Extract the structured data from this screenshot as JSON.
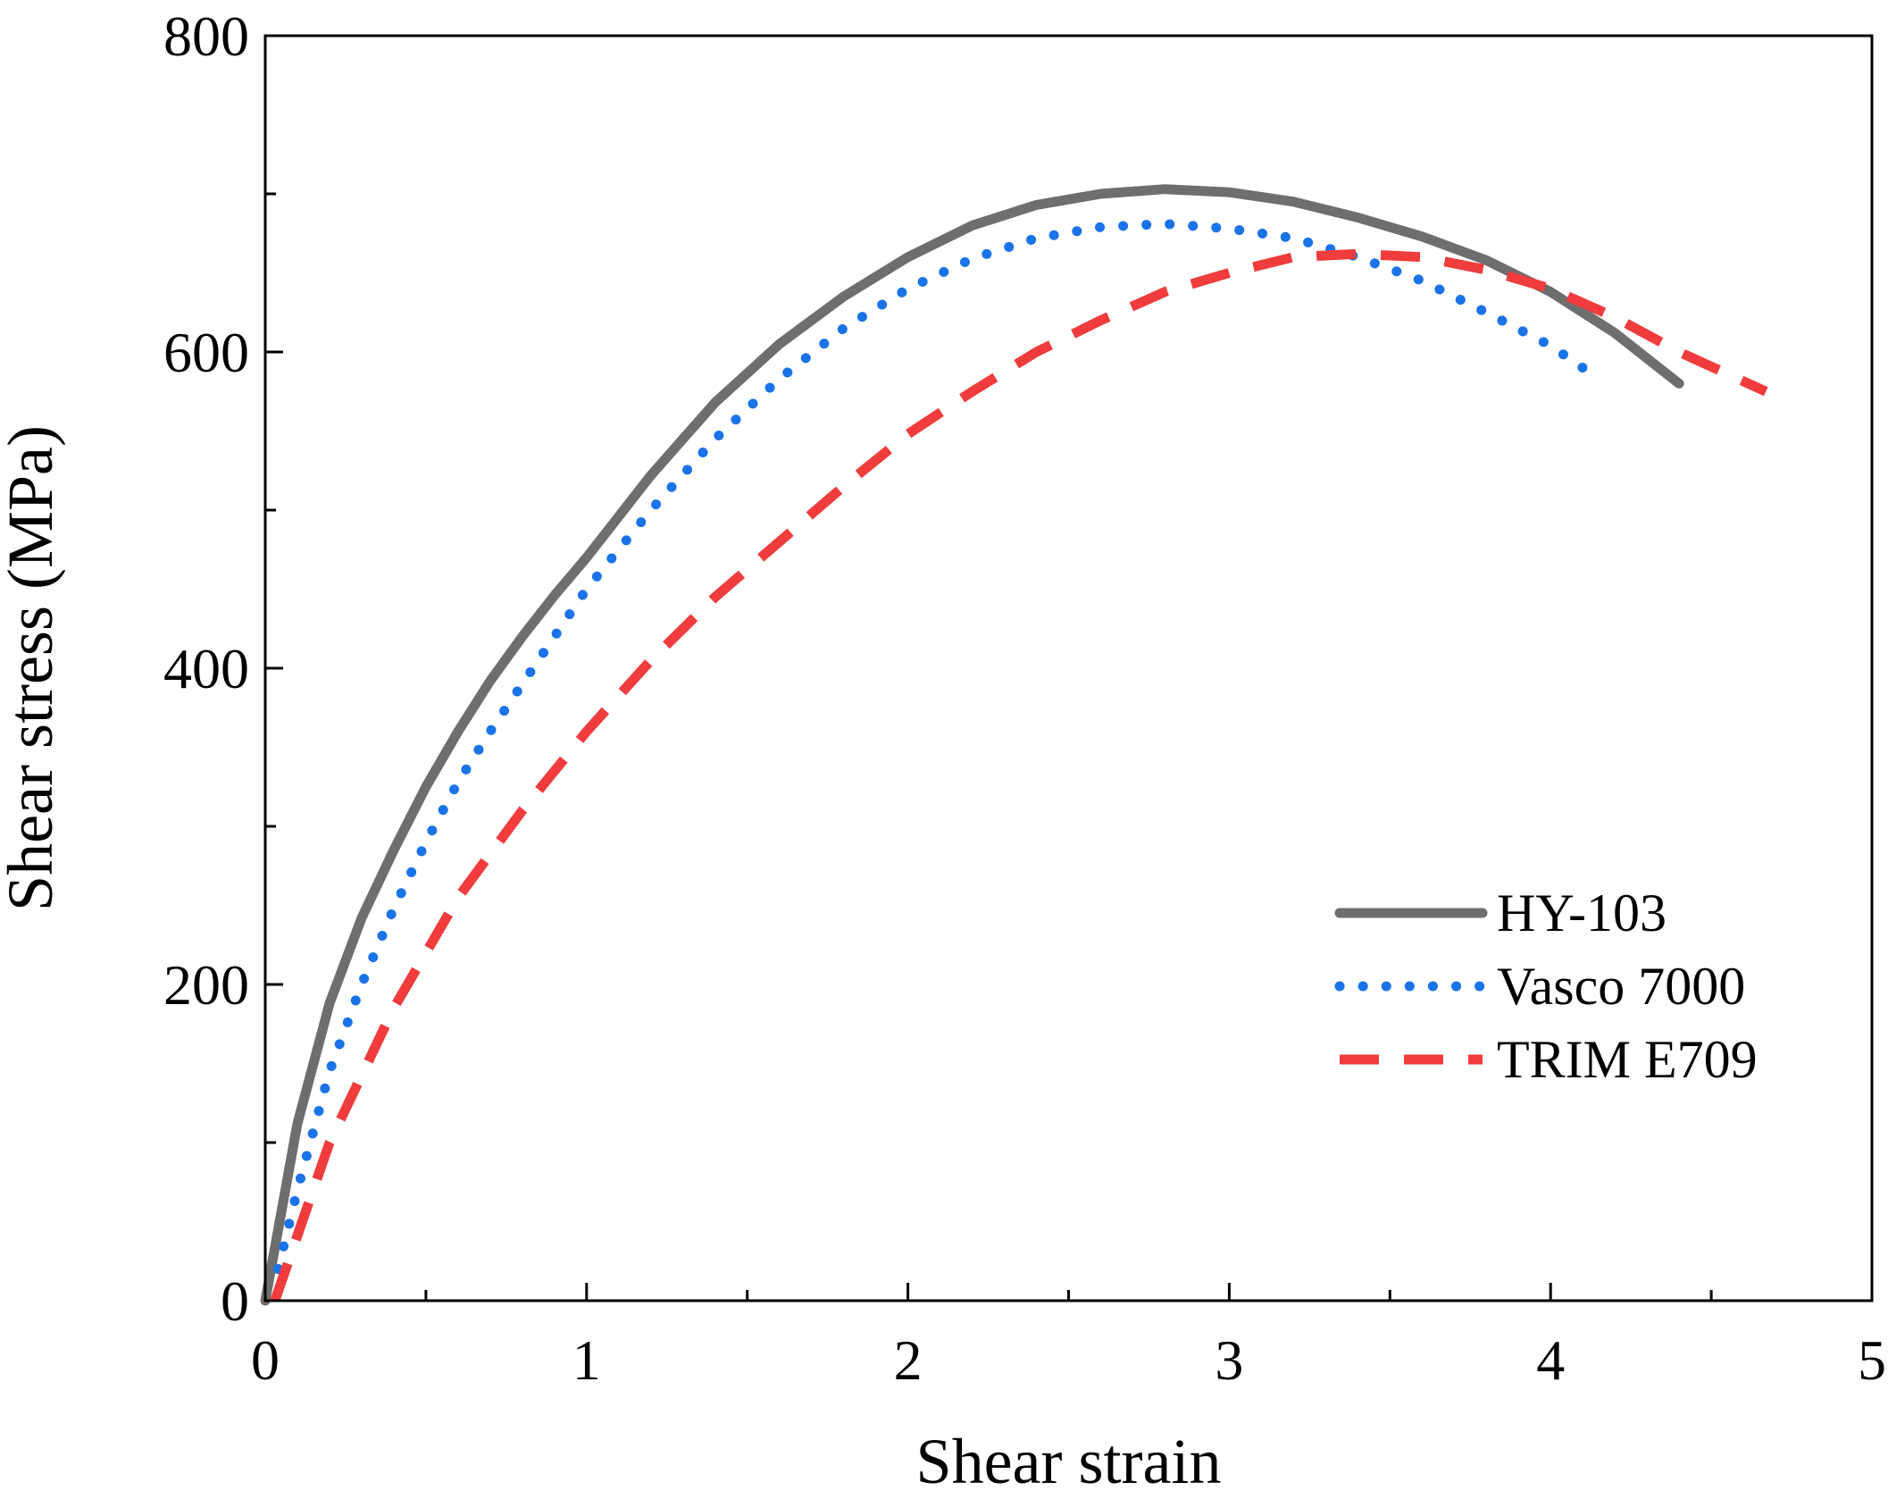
{
  "chart_data": {
    "type": "line",
    "title": "",
    "xlabel": "Shear strain",
    "ylabel": "Shear stress (MPa)",
    "xlim": [
      0,
      5
    ],
    "ylim": [
      0,
      800
    ],
    "xticks": [
      0,
      1,
      2,
      3,
      4,
      5
    ],
    "xtick_labels": [
      "0",
      "1",
      "2",
      "3",
      "4",
      "5"
    ],
    "yticks": [
      0,
      200,
      400,
      600,
      800
    ],
    "ytick_labels": [
      "0",
      "200",
      "400",
      "600",
      "800"
    ],
    "grid": false,
    "legend_position": "right",
    "series": [
      {
        "name": "HY-103",
        "color": "#6e6e6e",
        "style": "solid",
        "x": [
          0,
          0.1,
          0.2,
          0.3,
          0.4,
          0.5,
          0.6,
          0.7,
          0.8,
          0.9,
          1.0,
          1.2,
          1.4,
          1.6,
          1.8,
          2.0,
          2.2,
          2.4,
          2.6,
          2.8,
          3.0,
          3.2,
          3.4,
          3.6,
          3.8,
          4.0,
          4.2,
          4.4
        ],
        "y": [
          0,
          112,
          188,
          242,
          285,
          325,
          360,
          392,
          420,
          446,
          470,
          522,
          568,
          605,
          635,
          660,
          680,
          693,
          700,
          703,
          701,
          695,
          685,
          673,
          658,
          638,
          612,
          580
        ]
      },
      {
        "name": "Vasco 7000",
        "color": "#1a73e8",
        "style": "dotted",
        "x": [
          0.04,
          0.1,
          0.2,
          0.3,
          0.4,
          0.5,
          0.6,
          0.7,
          0.8,
          0.9,
          1.0,
          1.2,
          1.4,
          1.6,
          1.8,
          2.0,
          2.2,
          2.4,
          2.6,
          2.8,
          3.0,
          3.2,
          3.4,
          3.6,
          3.8,
          4.0,
          4.1
        ],
        "y": [
          20,
          70,
          145,
          200,
          248,
          290,
          328,
          360,
          390,
          420,
          450,
          500,
          545,
          583,
          615,
          640,
          659,
          672,
          679,
          681,
          678,
          672,
          660,
          645,
          625,
          604,
          590
        ]
      },
      {
        "name": "TRIM E709",
        "color": "#f03c3c",
        "style": "dashed",
        "x": [
          0.03,
          0.2,
          0.4,
          0.6,
          0.8,
          1.0,
          1.2,
          1.4,
          1.6,
          1.8,
          2.0,
          2.2,
          2.4,
          2.6,
          2.8,
          3.0,
          3.2,
          3.4,
          3.6,
          3.8,
          4.0,
          4.2,
          4.4,
          4.67
        ],
        "y": [
          0,
          100,
          185,
          255,
          310,
          360,
          405,
          445,
          480,
          515,
          548,
          575,
          600,
          620,
          638,
          650,
          660,
          662,
          660,
          652,
          640,
          622,
          600,
          575
        ]
      }
    ]
  }
}
